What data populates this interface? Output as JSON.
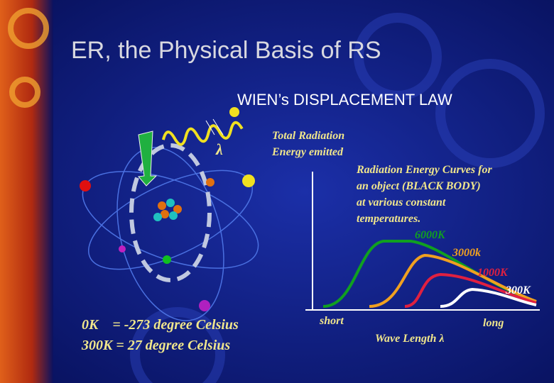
{
  "title": "ER, the Physical Basis of RS",
  "subtitle": "WIEN’s DISPLACEMENT LAW",
  "symbol": "λ",
  "y_axis_label": [
    "Total Radiation",
    "Energy emitted"
  ],
  "note": [
    "Radiation Energy Curves for",
    "an object (BLACK BODY)",
    "at various constant",
    "temperatures."
  ],
  "curves": [
    {
      "label": "6000K"
    },
    {
      "label": "3000k"
    },
    {
      "label": "1000K"
    },
    {
      "label": "300K"
    }
  ],
  "x_axis": {
    "label": "Wave Length λ",
    "start": "short",
    "end": "long"
  },
  "conversions": [
    "0K    = -273 degree Celsius",
    "300K = 27 degree Celsius"
  ]
}
